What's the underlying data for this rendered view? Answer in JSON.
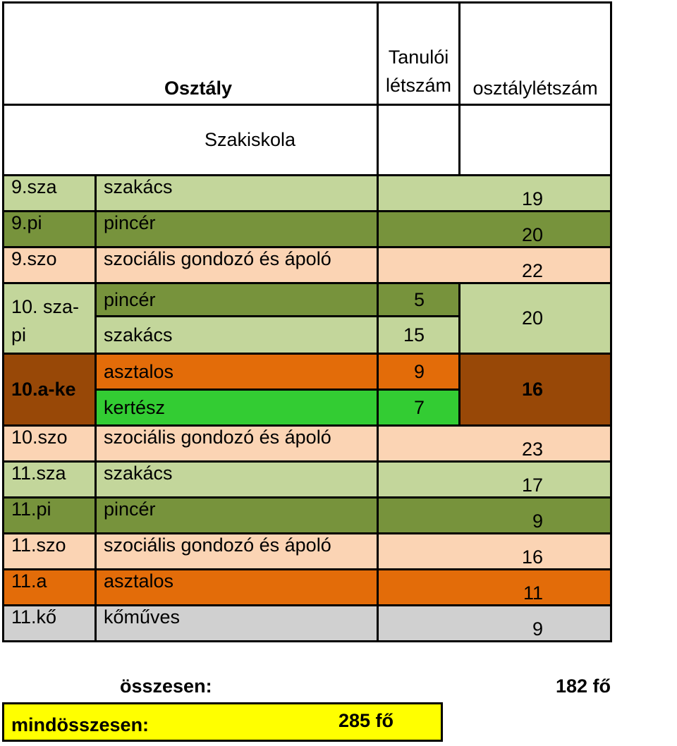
{
  "header": {
    "col_osztaly": "Osztály",
    "col_tanuloi_1": "Tanulói",
    "col_tanuloi_2": "létszám",
    "col_osztalyletszam": "osztálylétszám",
    "subheader": "Szakiskola"
  },
  "rows": [
    {
      "code": "9.sza",
      "name": "szakács",
      "count": "19"
    },
    {
      "code": "9.pi",
      "name": "pincér",
      "count": "20"
    },
    {
      "code": "9.szo",
      "name": "szociális gondozó és ápoló",
      "count": "22"
    },
    {
      "code": "10. sza-pi",
      "sub": [
        {
          "name": "pincér",
          "tanuloi": "5"
        },
        {
          "name": "szakács",
          "tanuloi": "15"
        }
      ],
      "count": "20"
    },
    {
      "code": "10.a-ke",
      "sub": [
        {
          "name": "asztalos",
          "tanuloi": "9"
        },
        {
          "name": "kertész",
          "tanuloi": "7"
        }
      ],
      "count": "16"
    },
    {
      "code": "10.szo",
      "name": "szociális gondozó és ápoló",
      "count": "23"
    },
    {
      "code": "11.sza",
      "name": "szakács",
      "count": "17"
    },
    {
      "code": "11.pi",
      "name": "pincér",
      "count": "9"
    },
    {
      "code": "11.szo",
      "name": "szociális gondozó és ápoló",
      "count": "16"
    },
    {
      "code": "11.a",
      "name": "asztalos",
      "count": "11"
    },
    {
      "code": "11.kő",
      "name": "kőműves",
      "count": "9"
    }
  ],
  "totals": {
    "osszesen_label": "összesen:",
    "osszesen_value": "182 fő",
    "mindosszesen_label": "mindösszesen:",
    "mindosszesen_value": "285 fő"
  },
  "colors": {
    "light_green": "#c3d69b",
    "dark_green": "#77933c",
    "peach": "#fbd4b4",
    "orange": "#e36c09",
    "bright_green": "#33cc33",
    "brown": "#984807",
    "gray": "#d0d0d0",
    "yellow": "#ffff00"
  }
}
